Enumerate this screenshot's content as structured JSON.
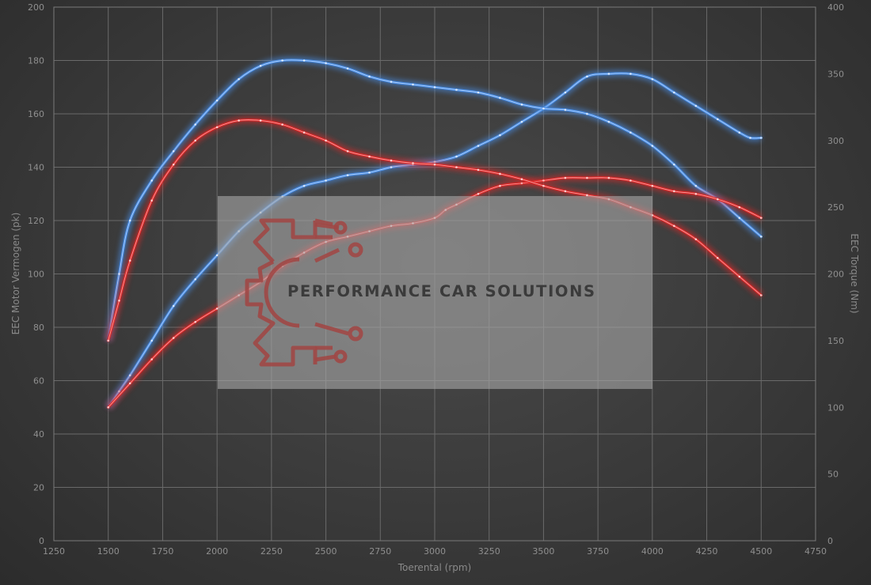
{
  "chart_data": {
    "type": "line",
    "xlabel": "Toerental (rpm)",
    "ylabel": "EEC Motor Vermogen (pk)",
    "y2label": "EEC Torque (Nm)",
    "xlim": [
      1250,
      4750
    ],
    "ylim": [
      0,
      200
    ],
    "y2lim": [
      0,
      400
    ],
    "xticks": [
      1250,
      1500,
      1750,
      2000,
      2250,
      2500,
      2750,
      3000,
      3250,
      3500,
      3750,
      4000,
      4250,
      4500,
      4750
    ],
    "yticks": [
      0,
      20,
      40,
      60,
      80,
      100,
      120,
      140,
      160,
      180,
      200
    ],
    "y2ticks": [
      0,
      50,
      100,
      150,
      200,
      250,
      300,
      350,
      400
    ],
    "grid": true,
    "watermark": "PERFORMANCE CAR SOLUTIONS",
    "colors": {
      "tuned": "#4a8fe8",
      "stock": "#e02828"
    },
    "series": [
      {
        "group": "tuned",
        "kind": "power",
        "axis": "left",
        "x": [
          1500,
          1550,
          1600,
          1700,
          1800,
          1900,
          2000,
          2100,
          2200,
          2300,
          2400,
          2500,
          2600,
          2700,
          2800,
          2900,
          3000,
          3100,
          3200,
          3300,
          3400,
          3500,
          3600,
          3700,
          3800,
          3900,
          4000,
          4100,
          4200,
          4300,
          4400,
          4450,
          4500
        ],
        "y": [
          50,
          56,
          62,
          75,
          88,
          98,
          107,
          116,
          123,
          129,
          133,
          135,
          137,
          138,
          140,
          141,
          142,
          144,
          148,
          152,
          157,
          162,
          168,
          174,
          175,
          175,
          173,
          168,
          163,
          158,
          153,
          151,
          151
        ]
      },
      {
        "group": "tuned",
        "kind": "torque",
        "axis": "right",
        "x": [
          1500,
          1550,
          1600,
          1700,
          1800,
          1900,
          2000,
          2100,
          2200,
          2300,
          2400,
          2500,
          2600,
          2700,
          2800,
          2900,
          3000,
          3100,
          3200,
          3300,
          3400,
          3500,
          3600,
          3700,
          3800,
          3900,
          4000,
          4100,
          4200,
          4300,
          4400,
          4500
        ],
        "y": [
          150,
          200,
          240,
          270,
          292,
          312,
          330,
          346,
          356,
          360,
          360,
          358,
          354,
          348,
          344,
          342,
          340,
          338,
          336,
          332,
          327,
          324,
          323,
          320,
          314,
          306,
          296,
          282,
          266,
          256,
          242,
          228
        ]
      },
      {
        "group": "stock",
        "kind": "power",
        "axis": "left",
        "x": [
          1500,
          1600,
          1700,
          1800,
          1900,
          2000,
          2100,
          2200,
          2300,
          2400,
          2500,
          2600,
          2700,
          2800,
          2900,
          3000,
          3050,
          3100,
          3200,
          3300,
          3400,
          3500,
          3600,
          3700,
          3800,
          3900,
          4000,
          4100,
          4200,
          4300,
          4400,
          4500
        ],
        "y": [
          50,
          59,
          68,
          76,
          82,
          87,
          92,
          97,
          103,
          108,
          112,
          114,
          116,
          118,
          119,
          121,
          124,
          126,
          130,
          133,
          134,
          135,
          136,
          136,
          136,
          135,
          133,
          131,
          130,
          128,
          125,
          121
        ]
      },
      {
        "group": "stock",
        "kind": "torque",
        "axis": "right",
        "x": [
          1500,
          1550,
          1600,
          1700,
          1800,
          1900,
          2000,
          2100,
          2200,
          2300,
          2400,
          2500,
          2600,
          2700,
          2800,
          2900,
          3000,
          3100,
          3200,
          3300,
          3400,
          3500,
          3600,
          3700,
          3800,
          3900,
          4000,
          4100,
          4200,
          4300,
          4400,
          4500
        ],
        "y": [
          150,
          180,
          210,
          255,
          282,
          300,
          310,
          315,
          315,
          312,
          306,
          300,
          292,
          288,
          285,
          283,
          282,
          280,
          278,
          275,
          271,
          266,
          262,
          259,
          256,
          250,
          244,
          236,
          226,
          212,
          198,
          184
        ]
      }
    ]
  }
}
